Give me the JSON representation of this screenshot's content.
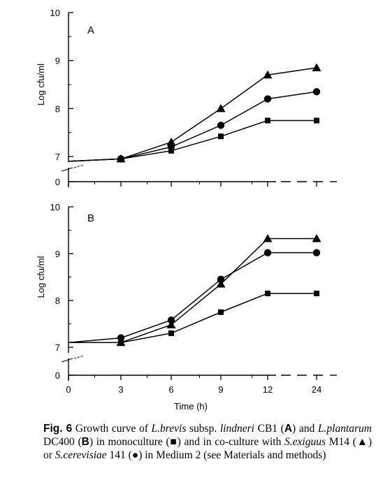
{
  "chart_data": [
    {
      "type": "line",
      "panel_label": "A",
      "xlabel": "",
      "ylabel": "Log cfu/ml",
      "yticks": [
        "0",
        "7",
        "8",
        "9",
        "10"
      ],
      "xticks": [
        0,
        3,
        6,
        9,
        12,
        24
      ],
      "x_axis_break": true,
      "y_axis_break": true,
      "grid": false,
      "series": [
        {
          "marker": "square",
          "x": [
            0,
            3,
            6,
            9,
            12,
            24
          ],
          "y": [
            6.9,
            6.95,
            7.12,
            7.42,
            7.75,
            7.75
          ]
        },
        {
          "marker": "circle",
          "x": [
            0,
            3,
            6,
            9,
            12,
            24
          ],
          "y": [
            6.9,
            6.95,
            7.2,
            7.65,
            8.2,
            8.35
          ]
        },
        {
          "marker": "triangle",
          "x": [
            0,
            3,
            6,
            9,
            12,
            24
          ],
          "y": [
            6.9,
            6.95,
            7.3,
            8.0,
            8.7,
            8.85
          ]
        }
      ]
    },
    {
      "type": "line",
      "panel_label": "B",
      "xlabel": "Time (h)",
      "ylabel": "Log cfu/ml",
      "yticks": [
        "0",
        "7",
        "8",
        "9",
        "10"
      ],
      "xticks": [
        "0",
        "3",
        "6",
        "9",
        "12",
        "24"
      ],
      "x_axis_break": true,
      "y_axis_break": true,
      "grid": false,
      "series": [
        {
          "marker": "square",
          "x": [
            0,
            3,
            6,
            9,
            12,
            24
          ],
          "y": [
            7.1,
            7.1,
            7.3,
            7.75,
            8.15,
            8.15
          ]
        },
        {
          "marker": "circle",
          "x": [
            0,
            3,
            6,
            9,
            12,
            24
          ],
          "y": [
            7.1,
            7.2,
            7.58,
            8.45,
            9.02,
            9.02
          ]
        },
        {
          "marker": "triangle",
          "x": [
            0,
            3,
            6,
            9,
            12,
            24
          ],
          "y": [
            7.1,
            7.1,
            7.48,
            8.35,
            9.32,
            9.32
          ]
        }
      ]
    }
  ],
  "caption": {
    "label": "Fig. 6",
    "segments": [
      {
        "t": " Growth curve of "
      },
      {
        "t": "L.brevis",
        "i": true
      },
      {
        "t": " subsp. "
      },
      {
        "t": "lindneri",
        "i": true
      },
      {
        "t": " CB1 ("
      },
      {
        "t": "A",
        "b": true
      },
      {
        "t": ") and "
      },
      {
        "t": "L.plantarum",
        "i": true
      },
      {
        "t": " DC400 ("
      },
      {
        "t": "B",
        "b": true
      },
      {
        "t": ") in monoculture ("
      },
      {
        "t": "■"
      },
      {
        "t": ") and in co-culture with "
      },
      {
        "t": "S.exiguus",
        "i": true
      },
      {
        "t": " M14 ("
      },
      {
        "t": "▲"
      },
      {
        "t": ") or "
      },
      {
        "t": "S.cerevisiae",
        "i": true
      },
      {
        "t": " 141 ("
      },
      {
        "t": "●"
      },
      {
        "t": ") in Medium 2 (see Materials and methods)"
      }
    ]
  }
}
